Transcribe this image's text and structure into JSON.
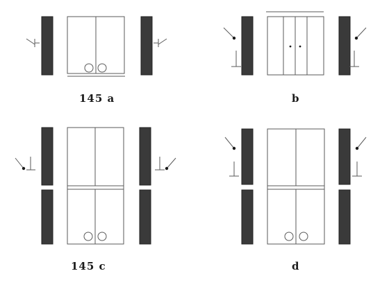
{
  "figure": {
    "panels": [
      {
        "id": "a",
        "label": "145  a"
      },
      {
        "id": "b",
        "label": "b"
      },
      {
        "id": "c",
        "label": "145  c"
      },
      {
        "id": "d",
        "label": "d"
      }
    ],
    "colors": {
      "wall": "#3a3a3a",
      "line": "#5a5a5a",
      "ink": "#1b1b1b"
    }
  }
}
